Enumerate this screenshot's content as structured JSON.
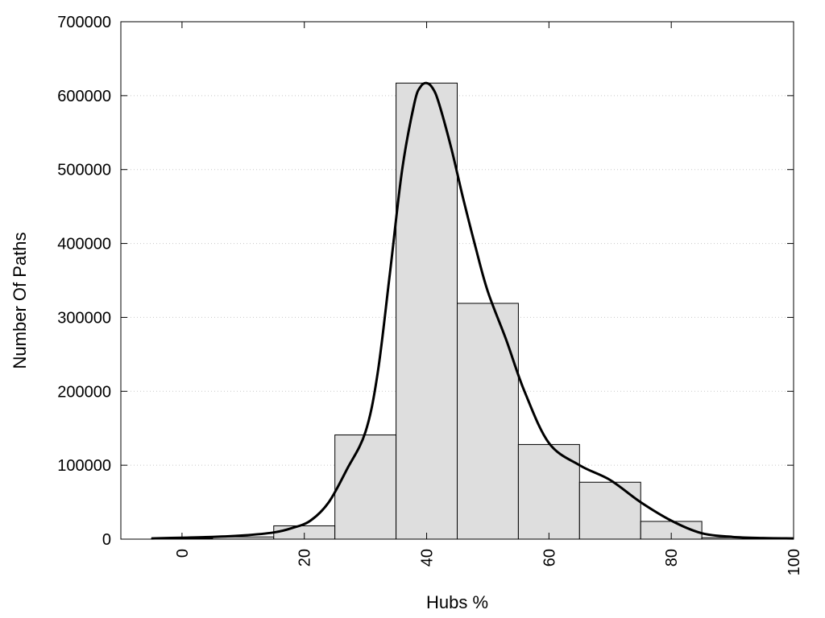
{
  "chart_data": {
    "type": "bar",
    "title": "",
    "xlabel": "Hubs %",
    "ylabel": "Number Of Paths",
    "xlim": [
      -10,
      100
    ],
    "ylim": [
      0,
      700000
    ],
    "grid": true,
    "legend": "none",
    "x_ticks": [
      0,
      20,
      40,
      60,
      80,
      100
    ],
    "y_ticks": [
      0,
      100000,
      200000,
      300000,
      400000,
      500000,
      600000,
      700000
    ],
    "bins": [
      {
        "x0": -5,
        "x1": 5,
        "value": 1000
      },
      {
        "x0": 5,
        "x1": 15,
        "value": 3000
      },
      {
        "x0": 15,
        "x1": 25,
        "value": 18000
      },
      {
        "x0": 25,
        "x1": 35,
        "value": 141000
      },
      {
        "x0": 35,
        "x1": 45,
        "value": 617000
      },
      {
        "x0": 45,
        "x1": 55,
        "value": 319000
      },
      {
        "x0": 55,
        "x1": 65,
        "value": 128000
      },
      {
        "x0": 65,
        "x1": 75,
        "value": 77000
      },
      {
        "x0": 75,
        "x1": 85,
        "value": 24000
      },
      {
        "x0": 85,
        "x1": 95,
        "value": 2000
      }
    ],
    "density_curve": {
      "x": [
        -5,
        0,
        5,
        10,
        15,
        18,
        21,
        24,
        27,
        30,
        32,
        34,
        36,
        38,
        39,
        40,
        41,
        42,
        44,
        46,
        48,
        50,
        53,
        56,
        60,
        65,
        70,
        75,
        80,
        85,
        90,
        95,
        100
      ],
      "y": [
        1000,
        2000,
        3000,
        5000,
        9000,
        15000,
        25000,
        50000,
        95000,
        145000,
        225000,
        360000,
        500000,
        590000,
        612000,
        617000,
        610000,
        590000,
        530000,
        460000,
        395000,
        335000,
        270000,
        200000,
        130000,
        100000,
        80000,
        50000,
        25000,
        8000,
        3000,
        1500,
        1000
      ]
    },
    "colors": {
      "bar_fill": "#dedede",
      "bar_stroke": "#000000",
      "curve": "#000000",
      "grid": "#c8c8c8"
    }
  }
}
